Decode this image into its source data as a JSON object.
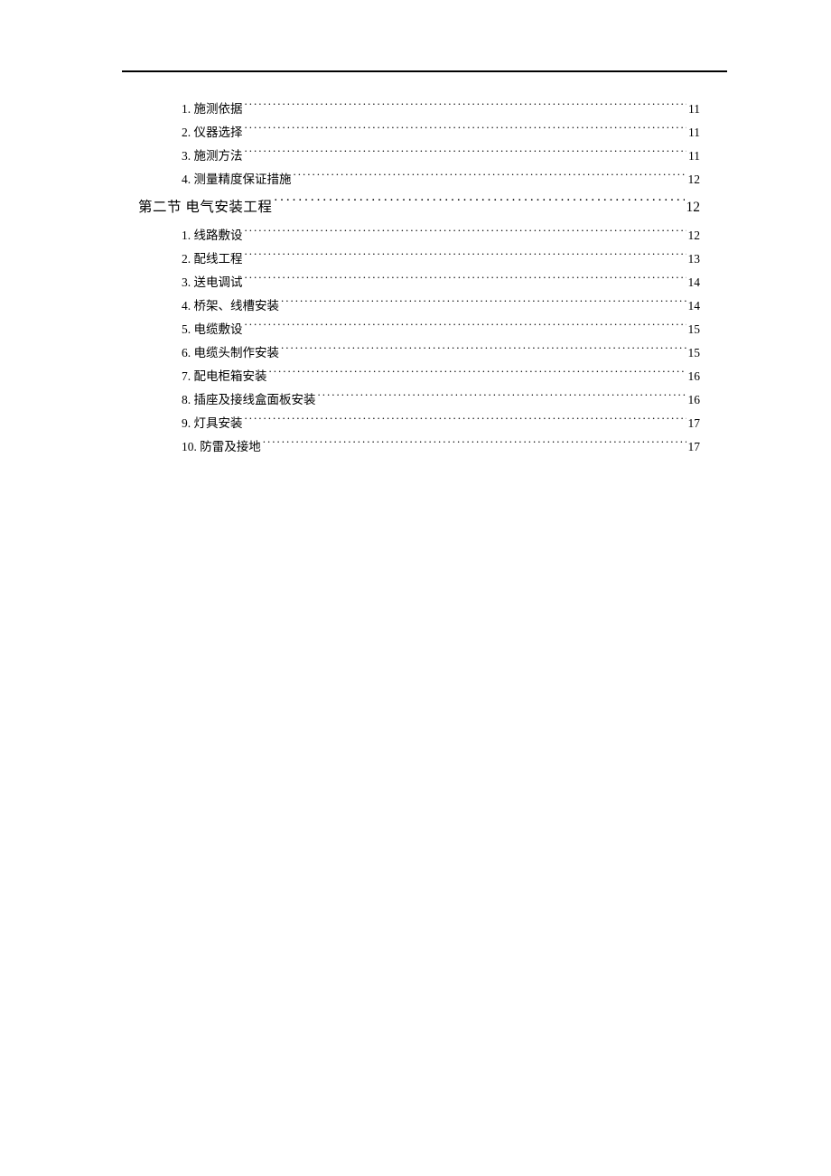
{
  "colors": {
    "background": "#ffffff",
    "text": "#000000",
    "rule": "#000000"
  },
  "typography": {
    "level3_fontsize": 13.5,
    "level2_fontsize": 15.5,
    "font_family": "SimSun"
  },
  "toc": {
    "entries": [
      {
        "level": 3,
        "label": "1.  施测依据",
        "page": "11"
      },
      {
        "level": 3,
        "label": "2.  仪器选择",
        "page": "11"
      },
      {
        "level": 3,
        "label": "3.  施测方法",
        "page": "11"
      },
      {
        "level": 3,
        "label": "4.  测量精度保证措施",
        "page": "12"
      },
      {
        "level": 2,
        "label": "第二节  电气安装工程",
        "page": "12"
      },
      {
        "level": 3,
        "label": "1.  线路敷设",
        "page": "12"
      },
      {
        "level": 3,
        "label": "2.  配线工程",
        "page": "13"
      },
      {
        "level": 3,
        "label": "3.  送电调试",
        "page": "14"
      },
      {
        "level": 3,
        "label": "4.  桥架、线槽安装",
        "page": "14"
      },
      {
        "level": 3,
        "label": "5.  电缆敷设",
        "page": "15"
      },
      {
        "level": 3,
        "label": "6.  电缆头制作安装",
        "page": "15"
      },
      {
        "level": 3,
        "label": "7.  配电柜箱安装",
        "page": "16"
      },
      {
        "level": 3,
        "label": "8.  插座及接线盒面板安装",
        "page": "16"
      },
      {
        "level": 3,
        "label": "9.  灯具安装",
        "page": "17"
      },
      {
        "level": 3,
        "label": "10.  防雷及接地",
        "page": "17"
      }
    ]
  }
}
